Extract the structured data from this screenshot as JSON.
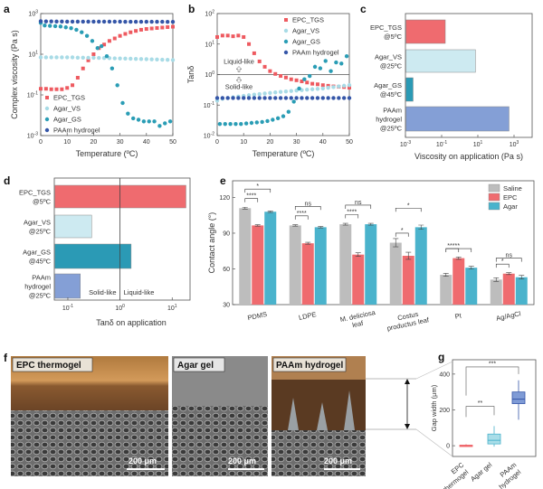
{
  "panel_labels": {
    "a": "a",
    "b": "b",
    "c": "c",
    "d": "d",
    "e": "e",
    "f": "f",
    "g": "g"
  },
  "colors": {
    "epc": "#ee5a60",
    "agar_vs": "#a8dbe6",
    "agar_gs": "#2a9db5",
    "paam": "#3556a8",
    "saline": "#bdbdbd",
    "agar": "#4ab3cc",
    "bar_epc": "#ef6b6f",
    "bar_vs": "#cdeaf1",
    "bar_gs": "#2b9ab5",
    "bar_paam": "#849fd6"
  },
  "chart_data": [
    {
      "id": "a",
      "type": "scatter",
      "xlabel": "Temperature (ºC)",
      "ylabel": "Complex viscosity (Pa s)",
      "xlim": [
        0,
        50
      ],
      "ylim_log10": [
        -3,
        3
      ],
      "xticks": [
        0,
        10,
        20,
        30,
        40,
        50
      ],
      "yticks_exp": [
        -3,
        -1,
        1,
        3
      ],
      "legend_position": "bottom-left",
      "series": [
        {
          "name": "EPC_TGS",
          "marker": "square",
          "x": [
            0,
            2,
            4,
            6,
            8,
            10,
            12,
            14,
            16,
            18,
            20,
            22,
            24,
            26,
            28,
            30,
            32,
            34,
            36,
            38,
            40,
            42,
            44,
            46,
            48,
            50
          ],
          "y": [
            0.2,
            0.2,
            0.19,
            0.19,
            0.19,
            0.22,
            0.3,
            0.7,
            2,
            5,
            10,
            20,
            30,
            45,
            60,
            80,
            100,
            120,
            140,
            160,
            175,
            185,
            195,
            205,
            215,
            225
          ]
        },
        {
          "name": "Agar_VS",
          "marker": "circle",
          "x": [
            0,
            2,
            4,
            6,
            8,
            10,
            12,
            14,
            16,
            18,
            20,
            22,
            24,
            26,
            28,
            30,
            32,
            34,
            36,
            38,
            40,
            42,
            44,
            46,
            48,
            50
          ],
          "y": [
            7,
            7,
            7,
            7,
            7,
            7,
            7,
            6.8,
            6.8,
            6.7,
            6.7,
            6.6,
            6.5,
            6.4,
            6.3,
            6.2,
            6.1,
            6,
            5.9,
            5.8,
            5.7,
            5.6,
            5.5,
            5.4,
            5.3,
            5.2
          ]
        },
        {
          "name": "Agar_GS",
          "marker": "circle",
          "x": [
            0,
            1.5,
            3.5,
            5.5,
            7.5,
            9.5,
            11.5,
            13.5,
            15.5,
            17.5,
            19.5,
            21.5,
            23,
            25,
            27,
            29,
            31,
            33,
            35,
            37,
            39,
            41,
            43,
            45,
            47,
            49
          ],
          "y": [
            350,
            260,
            250,
            240,
            230,
            210,
            190,
            160,
            120,
            80,
            45,
            20,
            25,
            8,
            2,
            0.3,
            0.04,
            0.012,
            0.007,
            0.006,
            0.005,
            0.005,
            0.005,
            0.003,
            0.004,
            0.005
          ]
        },
        {
          "name": "PAAm hydrogel",
          "marker": "circle",
          "x": [
            0,
            2,
            4,
            6,
            8,
            10,
            12,
            14,
            16,
            18,
            20,
            22,
            24,
            26,
            28,
            30,
            32,
            34,
            36,
            38,
            40,
            42,
            44,
            46,
            48,
            50
          ],
          "y": [
            420,
            410,
            410,
            405,
            405,
            400,
            400,
            400,
            400,
            400,
            400,
            400,
            400,
            400,
            400,
            400,
            395,
            395,
            395,
            395,
            395,
            395,
            395,
            395,
            390,
            390
          ]
        }
      ]
    },
    {
      "id": "b",
      "type": "scatter",
      "xlabel": "Temperature (ºC)",
      "ylabel": "Tanδ",
      "xlim": [
        0,
        50
      ],
      "ylim_log10": [
        -2,
        2
      ],
      "xticks": [
        0,
        10,
        20,
        30,
        40,
        50
      ],
      "yticks_exp": [
        -2,
        -1,
        0,
        1,
        2
      ],
      "reference_line": 1,
      "annotations": [
        "Liquid-like",
        "Solid-like"
      ],
      "legend_position": "top-right",
      "series": [
        {
          "name": "EPC_TGS",
          "marker": "square",
          "x": [
            0,
            2,
            4,
            6,
            8,
            10,
            12,
            14,
            16,
            18,
            20,
            22,
            24,
            26,
            28,
            30,
            32,
            34,
            36,
            38,
            40,
            42,
            44,
            46,
            48,
            50
          ],
          "y": [
            17,
            19,
            19,
            18,
            19,
            17,
            10,
            5,
            2.7,
            1.8,
            1.3,
            1.05,
            0.9,
            0.8,
            0.7,
            0.65,
            0.6,
            0.55,
            0.5,
            0.48,
            0.45,
            0.43,
            0.41,
            0.4,
            0.39,
            0.37
          ]
        },
        {
          "name": "Agar_VS",
          "marker": "circle",
          "x": [
            0,
            2,
            4,
            6,
            8,
            10,
            12,
            14,
            16,
            18,
            20,
            22,
            24,
            26,
            28,
            30,
            32,
            34,
            36,
            38,
            40,
            42,
            44,
            46,
            48,
            50
          ],
          "y": [
            0.14,
            0.16,
            0.17,
            0.18,
            0.19,
            0.2,
            0.21,
            0.22,
            0.23,
            0.24,
            0.25,
            0.26,
            0.27,
            0.28,
            0.29,
            0.3,
            0.31,
            0.32,
            0.33,
            0.34,
            0.35,
            0.37,
            0.39,
            0.41,
            0.43,
            0.45
          ]
        },
        {
          "name": "Agar_GS",
          "marker": "circle",
          "x": [
            1,
            3,
            5,
            7,
            9,
            11,
            13,
            15,
            17,
            19,
            21,
            23,
            25,
            27,
            29,
            31,
            33,
            35,
            37,
            39,
            41,
            43,
            45,
            47,
            49
          ],
          "y": [
            0.024,
            0.024,
            0.024,
            0.024,
            0.024,
            0.025,
            0.026,
            0.027,
            0.028,
            0.03,
            0.033,
            0.037,
            0.043,
            0.06,
            0.13,
            0.35,
            0.7,
            0.9,
            1.8,
            1.6,
            2.8,
            1.3,
            2.5,
            2.3,
            4
          ]
        },
        {
          "name": "PAAm hydrogel",
          "marker": "circle",
          "x": [
            0,
            2,
            4,
            6,
            8,
            10,
            12,
            14,
            16,
            18,
            20,
            22,
            24,
            26,
            28,
            30,
            32,
            34,
            36,
            38,
            40,
            42,
            44,
            46,
            48,
            50
          ],
          "y": [
            0.17,
            0.17,
            0.17,
            0.17,
            0.17,
            0.17,
            0.17,
            0.17,
            0.17,
            0.17,
            0.17,
            0.17,
            0.17,
            0.17,
            0.17,
            0.17,
            0.17,
            0.17,
            0.17,
            0.17,
            0.17,
            0.17,
            0.17,
            0.17,
            0.17,
            0.17
          ]
        }
      ]
    },
    {
      "id": "c",
      "type": "bar",
      "orientation": "horizontal",
      "xlabel": "Viscosity on application (Pa s)",
      "xlim_log10": [
        -3,
        4
      ],
      "xticks_exp": [
        -3,
        -1,
        1,
        3
      ],
      "categories": [
        [
          "EPC_TGS",
          "@5ºC"
        ],
        [
          "Agar_VS",
          "@25ºC"
        ],
        [
          "Agar_GS",
          "@45ºC"
        ],
        [
          "PAAm",
          "hydrogel",
          "@25ºC"
        ]
      ],
      "values": [
        0.15,
        7,
        0.0025,
        500
      ]
    },
    {
      "id": "d",
      "type": "bar",
      "orientation": "horizontal",
      "xlabel": "Tanδ on application",
      "xlim": [
        0.055,
        22
      ],
      "xticks_exp": [
        -1,
        0,
        1
      ],
      "reference_line": 1,
      "annotation": "Solid-like ⇔ Liquid-like",
      "annotation_left": "Solid-like",
      "annotation_right": "Liquid-like",
      "categories": [
        [
          "EPC_TGS",
          "@5ºC"
        ],
        [
          "Agar_VS",
          "@25ºC"
        ],
        [
          "Agar_GS",
          "@45ºC"
        ],
        [
          "PAAm",
          "hydrogel",
          "@25ºC"
        ]
      ],
      "values": [
        18,
        0.28,
        1.6,
        0.17
      ]
    },
    {
      "id": "e",
      "type": "bar",
      "ylabel": "Contact angle (°)",
      "ylim": [
        30,
        134
      ],
      "yticks": [
        30,
        60,
        90,
        120
      ],
      "legend_position": "top-right",
      "categories": [
        [
          "PDMS"
        ],
        [
          "LDPE"
        ],
        [
          "M. deliciosa",
          "leaf"
        ],
        [
          "Costus",
          "productus leaf"
        ],
        [
          "Pt"
        ],
        [
          "Ag/AgCl"
        ]
      ],
      "series": [
        {
          "name": "Saline",
          "values": [
            111,
            96.5,
            97.5,
            82,
            55,
            51
          ],
          "errors": [
            0.8,
            0.6,
            0.8,
            3.5,
            1.2,
            1.5
          ]
        },
        {
          "name": "EPC",
          "values": [
            96.5,
            81.5,
            72,
            71,
            69,
            56
          ],
          "errors": [
            0.6,
            0.8,
            1.5,
            3,
            1,
            0.8
          ]
        },
        {
          "name": "Agar",
          "values": [
            108,
            95,
            97.5,
            95,
            61,
            53
          ],
          "errors": [
            0.6,
            0.6,
            0.8,
            1.8,
            1.2,
            1.5
          ]
        }
      ],
      "significance": [
        [
          "****",
          "*"
        ],
        [
          "****",
          "ns"
        ],
        [
          "****",
          "ns"
        ],
        [
          "*",
          "*"
        ],
        [
          "****",
          "*"
        ],
        [
          "*",
          "ns"
        ]
      ]
    },
    {
      "id": "g",
      "type": "box",
      "ylabel": "Gap width (μm)",
      "ylim": [
        -60,
        480
      ],
      "yticks": [
        0,
        200,
        400
      ],
      "categories": [
        [
          "EPC",
          "thermogel"
        ],
        [
          "Agar gel"
        ],
        [
          "PAAm",
          "hydrogel"
        ]
      ],
      "boxes": [
        {
          "min": -5,
          "q1": -2,
          "median": 0,
          "q3": 3,
          "max": 8
        },
        {
          "min": -5,
          "q1": 10,
          "median": 30,
          "q3": 65,
          "max": 110
        },
        {
          "min": 145,
          "q1": 235,
          "median": 260,
          "q3": 300,
          "max": 365
        }
      ],
      "significance": [
        "**",
        "***"
      ]
    }
  ],
  "micrographs": [
    {
      "label": "EPC thermogel",
      "scale_bar": "200 μm"
    },
    {
      "label": "Agar gel",
      "scale_bar": "200 μm"
    },
    {
      "label": "PAAm hydrogel",
      "scale_bar": "200 μm"
    }
  ]
}
